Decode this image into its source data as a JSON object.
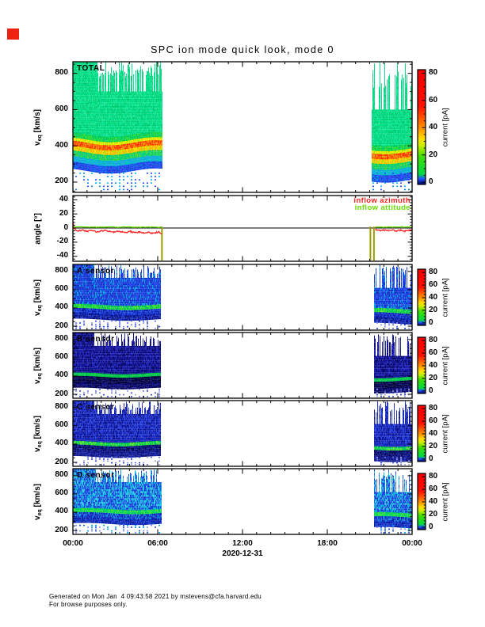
{
  "title": "SPC ion mode quick look, mode 0",
  "marker_color": "#ee2211",
  "x_axis": {
    "tick_labels": [
      "00:00",
      "06:00",
      "12:00",
      "18:00",
      "00:00"
    ],
    "tick_hours": [
      0,
      6,
      12,
      18,
      24
    ],
    "minor_hours": 1,
    "date_label": "2020-12-31"
  },
  "footer": {
    "line1": "Generated on Mon Jan  4 09:43:58 2021 by mstevens@cfa.harvard.edu",
    "line2": "For browse purposes only."
  },
  "colorbar": {
    "label": "current [pA]",
    "ticks": [
      0,
      20,
      40,
      60,
      80
    ],
    "minor_step": 5,
    "gradient": [
      [
        0,
        "#000066"
      ],
      [
        0.05,
        "#2255ff"
      ],
      [
        0.09,
        "#00d844"
      ],
      [
        0.25,
        "#44dd00"
      ],
      [
        0.34,
        "#ccee00"
      ],
      [
        0.4,
        "#ffdd00"
      ],
      [
        0.48,
        "#ff9900"
      ],
      [
        0.58,
        "#ff5500"
      ],
      [
        0.68,
        "#ff1100"
      ],
      [
        1,
        "#ee0000"
      ]
    ]
  },
  "chart_data": [
    {
      "id": "total",
      "type": "heatmap",
      "label": "TOTAL",
      "ylabel_main": "v",
      "ylabel_sub": "eq",
      "ylabel_unit": " [km/s]",
      "yticks": [
        200,
        400,
        600,
        800
      ],
      "ytick_minor": 50,
      "yrange": [
        143,
        864
      ],
      "band": {
        "amp": 14,
        "per": 6.5,
        "ph": 2.2
      },
      "intervals": [
        {
          "t0": 0,
          "t1": 6.3,
          "band_shift": 0,
          "stripe_from": 1.7,
          "stripe_v": 700,
          "ragmin": 780,
          "ragmax": 868,
          "presence": 0.55
        },
        {
          "t0": 21.1,
          "t1": 24,
          "band_shift": -50,
          "stripe_from": 21.1,
          "stripe_v": 600,
          "ragmin": 700,
          "ragmax": 868,
          "presence": 0.5
        }
      ],
      "layers": [
        {
          "v0": 462,
          "v1": 868,
          "colors": [
            "#00e088",
            "#00d87c",
            "#16e696",
            "#00cc72",
            "#06de8e"
          ]
        },
        {
          "v0": 434,
          "v1": 462,
          "colors": [
            "#00d455",
            "#34dc32",
            "#00c966"
          ]
        },
        {
          "v0": 417,
          "v1": 434,
          "colors": [
            "#b4e400",
            "#ffe800",
            "#dcec00"
          ]
        },
        {
          "v0": 389,
          "v1": 417,
          "colors": [
            "#ff9000",
            "#ff5500",
            "#ff2a00",
            "#ff7a00",
            "#ff4000"
          ]
        },
        {
          "v0": 363,
          "v1": 389,
          "colors": [
            "#ffd800",
            "#bede00",
            "#ffb000"
          ]
        },
        {
          "v0": 331,
          "v1": 363,
          "colors": [
            "#00d072",
            "#46d836",
            "#00ca8e"
          ]
        },
        {
          "v0": 301,
          "v1": 331,
          "colors": [
            "#00b0d8",
            "#22a2e8",
            "#00c2be"
          ]
        },
        {
          "v0": 266,
          "v1": 301,
          "colors": [
            "#2038d8",
            "#1458e8",
            "#3346ff",
            "#0072e0",
            "#2a42ee"
          ]
        }
      ],
      "dotted": {
        "vtop": 252,
        "vbot": 148,
        "step": 18,
        "p": 0.55,
        "colors": [
          "#00b4ff",
          "#2a48ff",
          "#0086e6"
        ]
      }
    },
    {
      "id": "angle",
      "type": "line",
      "ylabel": "angle [°]",
      "yticks": [
        -40,
        -20,
        0,
        20,
        40
      ],
      "ytick_minor": 4,
      "yrange": [
        -47,
        46
      ],
      "zero_line": 0,
      "legend": [
        {
          "label": "inflow azimuth",
          "color": "#ff2020"
        },
        {
          "label": "inflow attitude",
          "color": "#66dd00"
        }
      ],
      "spikes": {
        "color": "#9c9c00",
        "times": [
          6.3,
          21.05,
          21.3
        ]
      },
      "series": [
        {
          "name": "inflow azimuth",
          "color": "#ff2020",
          "noise": 0.9,
          "points": [
            [
              0,
              10
            ],
            [
              0.08,
              -1
            ],
            [
              0.35,
              -3.8
            ],
            [
              0.7,
              -3
            ],
            [
              1.0,
              -4.6
            ],
            [
              1.3,
              -3.6
            ],
            [
              1.7,
              -5.4
            ],
            [
              2.0,
              -4.2
            ],
            [
              2.3,
              -3.4
            ],
            [
              2.6,
              -4.8
            ],
            [
              2.9,
              -5.6
            ],
            [
              3.2,
              -4.6
            ],
            [
              3.5,
              -5.6
            ],
            [
              3.8,
              -6
            ],
            [
              4.1,
              -5
            ],
            [
              4.4,
              -6.6
            ],
            [
              4.7,
              -5.8
            ],
            [
              5.0,
              -7
            ],
            [
              5.3,
              -6.2
            ],
            [
              5.6,
              -7.2
            ],
            [
              5.9,
              -6.4
            ],
            [
              6.1,
              -6
            ],
            [
              6.3,
              -7.5
            ],
            [
              21.4,
              -2.4
            ],
            [
              21.7,
              -3.4
            ],
            [
              22.0,
              -2.8
            ],
            [
              22.3,
              -3.8
            ],
            [
              22.6,
              -3.0
            ],
            [
              22.9,
              -4.0
            ],
            [
              23.2,
              -3.2
            ],
            [
              23.5,
              -4.2
            ],
            [
              23.8,
              -3.4
            ],
            [
              24,
              -3.8
            ]
          ]
        },
        {
          "name": "inflow attitude",
          "color": "#66dd00",
          "noise": 0.45,
          "points": [
            [
              0,
              1.4
            ],
            [
              0.8,
              1.7
            ],
            [
              1.6,
              1.1
            ],
            [
              2.4,
              1.6
            ],
            [
              3.2,
              1.2
            ],
            [
              4.0,
              1.6
            ],
            [
              4.8,
              1.1
            ],
            [
              5.6,
              1.5
            ],
            [
              6.3,
              1.2
            ],
            [
              21.4,
              1.5
            ],
            [
              22.3,
              1.3
            ],
            [
              23.2,
              1.6
            ],
            [
              24,
              1.3
            ]
          ]
        }
      ]
    },
    {
      "id": "a-sensor",
      "type": "heatmap",
      "label": "A sensor",
      "ylabel_main": "v",
      "ylabel_sub": "eq",
      "ylabel_unit": " [km/s]",
      "yticks": [
        200,
        400,
        600,
        800
      ],
      "ytick_minor": 50,
      "yrange": [
        157,
        877
      ],
      "band": {
        "amp": 12,
        "per": 7,
        "ph": 1.3
      },
      "intervals": [
        {
          "t0": 0,
          "t1": 6.2,
          "band_shift": 0,
          "stripe_from": 1.5,
          "stripe_v": 730,
          "ragmin": 770,
          "ragmax": 872,
          "presence": 0.5
        },
        {
          "t0": 21.3,
          "t1": 24,
          "band_shift": -45,
          "stripe_from": 21.3,
          "stripe_v": 620,
          "ragmin": 750,
          "ragmax": 872,
          "presence": 0.55
        }
      ],
      "layers": [
        {
          "v0": 456,
          "v1": 872,
          "colors": [
            "#1e3cdc",
            "#2850e8",
            "#1530c0",
            "#00a0e0",
            "#2244ee",
            "#0f38d2"
          ]
        },
        {
          "v0": 433,
          "v1": 456,
          "colors": [
            "#1838d0",
            "#00a8d8",
            "#2040e0"
          ]
        },
        {
          "v0": 387,
          "v1": 433,
          "colors": [
            "#00d050",
            "#28dc38",
            "#00c060",
            "#54e022"
          ]
        },
        {
          "v0": 331,
          "v1": 387,
          "colors": [
            "#1830c8",
            "#2342e0",
            "#0a1aa0",
            "#1c50e8",
            "#0e28b6"
          ]
        },
        {
          "v0": 277,
          "v1": 331,
          "colors": [
            "#1224aa",
            "#2038cc",
            "#0a1480"
          ]
        }
      ],
      "dotted": {
        "vtop": 262,
        "vbot": 168,
        "step": 20,
        "p": 0.55,
        "colors": [
          "#2846e2",
          "#5a6cee",
          "#8c96f2"
        ]
      }
    },
    {
      "id": "b-sensor",
      "type": "heatmap",
      "label": "B sensor",
      "ylabel_main": "v",
      "ylabel_sub": "eq",
      "ylabel_unit": " [km/s]",
      "yticks": [
        200,
        400,
        600,
        800
      ],
      "ytick_minor": 50,
      "yrange": [
        157,
        877
      ],
      "band": {
        "amp": 10,
        "per": 6,
        "ph": 1.0
      },
      "intervals": [
        {
          "t0": 0,
          "t1": 6.2,
          "band_shift": 0,
          "stripe_from": 1.5,
          "stripe_v": 730,
          "ragmin": 770,
          "ragmax": 872,
          "presence": 0.5
        },
        {
          "t0": 21.3,
          "t1": 24,
          "band_shift": -45,
          "stripe_from": 21.3,
          "stripe_v": 620,
          "ragmin": 750,
          "ragmax": 872,
          "presence": 0.55
        }
      ],
      "layers": [
        {
          "v0": 456,
          "v1": 872,
          "colors": [
            "#12129a",
            "#1a1eb0",
            "#0a0a78",
            "#2228bc",
            "#060662"
          ]
        },
        {
          "v0": 429,
          "v1": 456,
          "colors": [
            "#101090",
            "#182098",
            "#0a0a70"
          ]
        },
        {
          "v0": 391,
          "v1": 429,
          "colors": [
            "#00d050",
            "#16cc3c",
            "#00b858"
          ]
        },
        {
          "v0": 323,
          "v1": 391,
          "colors": [
            "#02023a",
            "#0a0a58",
            "#121270",
            "#000028"
          ]
        },
        {
          "v0": 277,
          "v1": 323,
          "colors": [
            "#0c0c6e",
            "#04044a",
            "#16168a"
          ]
        }
      ],
      "dotted": {
        "vtop": 262,
        "vbot": 168,
        "step": 20,
        "p": 0.55,
        "colors": [
          "#3a4ace",
          "#7078de",
          "#a0a6ea"
        ]
      }
    },
    {
      "id": "c-sensor",
      "type": "heatmap",
      "label": "C sensor",
      "ylabel_main": "v",
      "ylabel_sub": "eq",
      "ylabel_unit": " [km/s]",
      "yticks": [
        200,
        400,
        600,
        800
      ],
      "ytick_minor": 50,
      "yrange": [
        157,
        877
      ],
      "band": {
        "amp": 11,
        "per": 6.5,
        "ph": 1.6
      },
      "intervals": [
        {
          "t0": 0,
          "t1": 6.2,
          "band_shift": 0,
          "stripe_from": 1.5,
          "stripe_v": 730,
          "ragmin": 770,
          "ragmax": 872,
          "presence": 0.5
        },
        {
          "t0": 21.3,
          "t1": 24,
          "band_shift": -45,
          "stripe_from": 21.3,
          "stripe_v": 620,
          "ragmin": 750,
          "ragmax": 872,
          "presence": 0.55
        }
      ],
      "layers": [
        {
          "v0": 456,
          "v1": 872,
          "colors": [
            "#1a28c4",
            "#2338d4",
            "#101aa0",
            "#2a44e0",
            "#0a1288"
          ]
        },
        {
          "v0": 425,
          "v1": 456,
          "colors": [
            "#1626b0",
            "#1e30c4"
          ]
        },
        {
          "v0": 385,
          "v1": 425,
          "colors": [
            "#00d050",
            "#30dc34",
            "#00c464",
            "#72e026"
          ]
        },
        {
          "v0": 319,
          "v1": 385,
          "colors": [
            "#0a1070",
            "#14188c",
            "#03034c",
            "#1c24a4"
          ]
        },
        {
          "v0": 275,
          "v1": 319,
          "colors": [
            "#10147e",
            "#1c28a8"
          ]
        }
      ],
      "dotted": {
        "vtop": 262,
        "vbot": 168,
        "step": 20,
        "p": 0.55,
        "colors": [
          "#2c40d6",
          "#6670e4",
          "#969ee8"
        ]
      }
    },
    {
      "id": "d-sensor",
      "type": "heatmap",
      "label": "D sensor",
      "ylabel_main": "v",
      "ylabel_sub": "eq",
      "ylabel_unit": " [km/s]",
      "yticks": [
        200,
        400,
        600,
        800
      ],
      "ytick_minor": 50,
      "yrange": [
        157,
        877
      ],
      "band": {
        "amp": 12,
        "per": 7,
        "ph": 0.8
      },
      "intervals": [
        {
          "t0": 0,
          "t1": 6.25,
          "band_shift": 0,
          "stripe_from": 1.6,
          "stripe_v": 730,
          "ragmin": 770,
          "ragmax": 872,
          "presence": 0.5
        },
        {
          "t0": 21.3,
          "t1": 24,
          "band_shift": -45,
          "stripe_from": 21.3,
          "stripe_v": 620,
          "ragmin": 750,
          "ragmax": 872,
          "presence": 0.55
        }
      ],
      "layers": [
        {
          "v0": 459,
          "v1": 872,
          "colors": [
            "#2148e0",
            "#00a8e0",
            "#2860e8",
            "#14b4dc",
            "#1838d4",
            "#32cae6"
          ]
        },
        {
          "v0": 433,
          "v1": 459,
          "colors": [
            "#1a40d8",
            "#00b0d8"
          ]
        },
        {
          "v0": 389,
          "v1": 433,
          "colors": [
            "#00dc50",
            "#42e032",
            "#00cc6c"
          ]
        },
        {
          "v0": 331,
          "v1": 389,
          "colors": [
            "#1838cc",
            "#0a90d0",
            "#2048e0",
            "#0c20b0"
          ]
        },
        {
          "v0": 279,
          "v1": 331,
          "colors": [
            "#1230bc",
            "#2244dc",
            "#0a1c9c"
          ]
        }
      ],
      "dotted": {
        "vtop": 262,
        "vbot": 168,
        "step": 20,
        "p": 0.55,
        "colors": [
          "#2050e0",
          "#00a4e4",
          "#7e92ee"
        ]
      }
    }
  ]
}
